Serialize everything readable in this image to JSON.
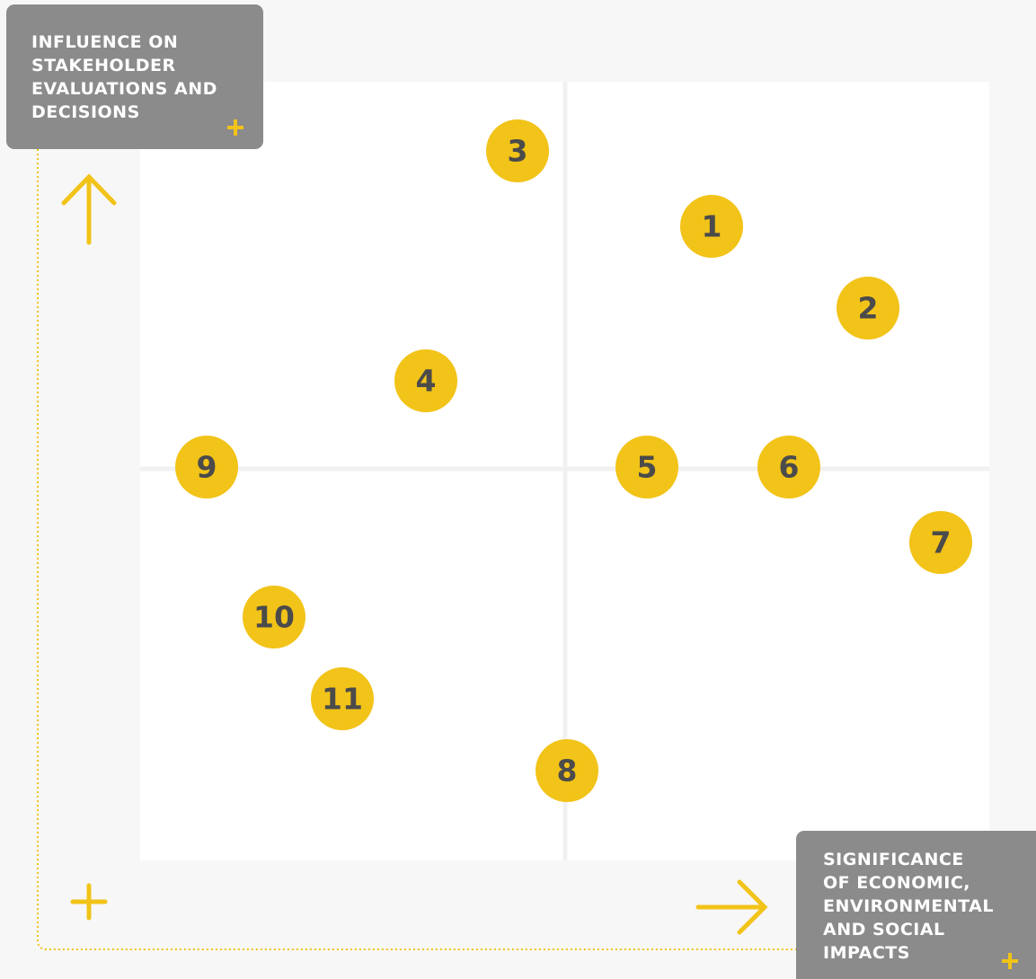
{
  "y_axis_box": {
    "lines": [
      "INFLUENCE ON",
      "STAKEHOLDER",
      "EVALUATIONS AND",
      "DECISIONS"
    ]
  },
  "x_axis_box": {
    "lines": [
      "SIGNIFICANCE",
      "OF ECONOMIC,",
      "ENVIRONMENTAL",
      "AND SOCIAL",
      "IMPACTS"
    ]
  },
  "nodes": [
    {
      "label": "1"
    },
    {
      "label": "2"
    },
    {
      "label": "3"
    },
    {
      "label": "4"
    },
    {
      "label": "5"
    },
    {
      "label": "6"
    },
    {
      "label": "7"
    },
    {
      "label": "8"
    },
    {
      "label": "9"
    },
    {
      "label": "10"
    },
    {
      "label": "11"
    }
  ]
}
